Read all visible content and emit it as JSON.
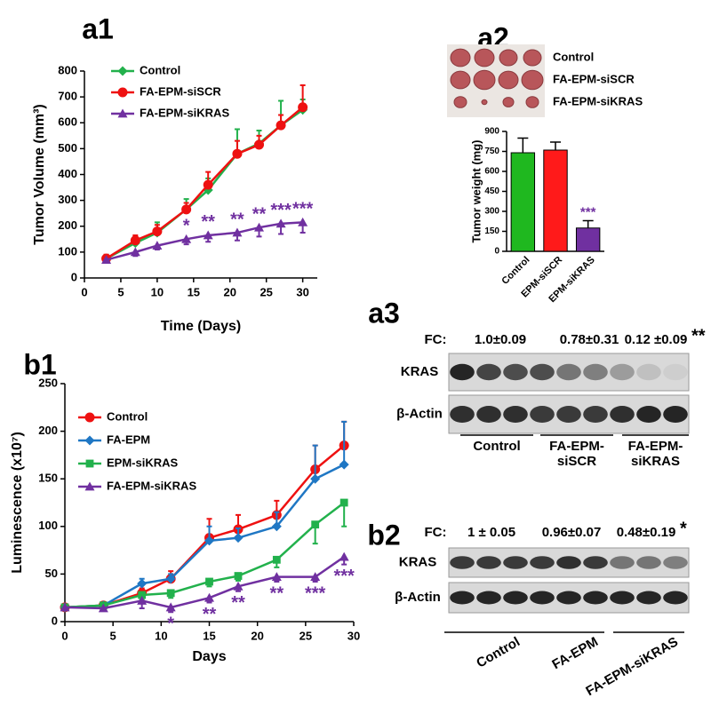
{
  "panel_labels": [
    "a1",
    "a2",
    "a3",
    "b1",
    "b2"
  ],
  "chart_data": [
    {
      "type": "line",
      "xlabel": "Time (Days)",
      "ylabel": "Tumor Volume (mm³)",
      "x": [
        3,
        7,
        10,
        14,
        17,
        21,
        24,
        27,
        30
      ],
      "xlim": [
        0,
        32
      ],
      "xticks": [
        0,
        5,
        10,
        15,
        20,
        25,
        30
      ],
      "ylim": [
        0,
        800
      ],
      "yticks": [
        0,
        100,
        200,
        300,
        400,
        500,
        600,
        700,
        800
      ],
      "legend_position": "upper left",
      "series": [
        {
          "name": "Control",
          "color": "#22b14c",
          "marker": "diamond",
          "error_direction": "up",
          "values": [
            75,
            135,
            175,
            265,
            340,
            480,
            520,
            590,
            650
          ],
          "errors": [
            10,
            15,
            40,
            40,
            45,
            95,
            50,
            95,
            40
          ]
        },
        {
          "name": "FA-EPM-siSCR",
          "color": "#ee1111",
          "marker": "circle",
          "error_direction": "up",
          "values": [
            75,
            145,
            180,
            265,
            360,
            480,
            515,
            590,
            660
          ],
          "errors": [
            15,
            20,
            25,
            25,
            50,
            50,
            35,
            40,
            85
          ]
        },
        {
          "name": "FA-EPM-siKRAS",
          "color": "#7030a0",
          "marker": "triangle",
          "error_direction": "down",
          "values": [
            70,
            100,
            125,
            150,
            165,
            175,
            195,
            210,
            215
          ],
          "errors": [
            10,
            15,
            15,
            20,
            25,
            30,
            35,
            40,
            40
          ]
        }
      ],
      "annotation_color": "#7030a0",
      "annotation_placement": "above",
      "annotations": [
        {
          "x": 14,
          "text": "*"
        },
        {
          "x": 17,
          "text": "**"
        },
        {
          "x": 21,
          "text": "**"
        },
        {
          "x": 24,
          "text": "**"
        },
        {
          "x": 27,
          "text": "***"
        },
        {
          "x": 30,
          "text": "***"
        }
      ]
    },
    {
      "type": "bar",
      "ylabel": "Tumor weight (mg)",
      "categories": [
        "Control",
        "EPM-siSCR",
        "EPM-siKRAS"
      ],
      "values": [
        740,
        760,
        175
      ],
      "errors": [
        110,
        60,
        55
      ],
      "colors": [
        "#1fb81f",
        "#ff1a1a",
        "#7030a0"
      ],
      "ylim": [
        0,
        900
      ],
      "yticks": [
        0,
        150,
        300,
        450,
        600,
        750,
        900
      ],
      "annotation_color": "#7030a0",
      "annotations": [
        {
          "category": "EPM-siKRAS",
          "text": "***"
        }
      ]
    },
    {
      "type": "line",
      "xlabel": "Days",
      "ylabel": "Luminescence (x10⁷)",
      "x": [
        0,
        4,
        8,
        11,
        15,
        18,
        22,
        26,
        29
      ],
      "xlim": [
        0,
        30
      ],
      "xticks": [
        0,
        5,
        10,
        15,
        20,
        25,
        30
      ],
      "ylim": [
        0,
        250
      ],
      "yticks": [
        0,
        50,
        100,
        150,
        200,
        250
      ],
      "legend_position": "upper left",
      "series": [
        {
          "name": "Control",
          "color": "#ee1111",
          "marker": "circle",
          "error_direction": "up",
          "values": [
            15,
            17,
            30,
            45,
            88,
            97,
            112,
            160,
            185
          ],
          "errors": [
            2,
            2,
            5,
            8,
            20,
            15,
            15,
            25,
            25
          ]
        },
        {
          "name": "FA-EPM",
          "color": "#1f77c4",
          "marker": "diamond",
          "error_direction": "up",
          "values": [
            15,
            17,
            40,
            45,
            85,
            88,
            100,
            150,
            165
          ],
          "errors": [
            2,
            2,
            5,
            5,
            15,
            10,
            15,
            35,
            45
          ]
        },
        {
          "name": "EPM-siKRAS",
          "color": "#22b14c",
          "marker": "square",
          "error_direction": "down",
          "values": [
            15,
            17,
            28,
            30,
            42,
            48,
            65,
            102,
            125
          ],
          "errors": [
            2,
            2,
            5,
            5,
            5,
            5,
            8,
            20,
            25
          ]
        },
        {
          "name": "FA-EPM-siKRAS",
          "color": "#7030a0",
          "marker": "triangle",
          "error_direction": "down",
          "values": [
            15,
            14,
            22,
            15,
            25,
            37,
            47,
            47,
            68
          ],
          "errors": [
            2,
            2,
            8,
            5,
            5,
            5,
            5,
            5,
            8
          ]
        }
      ],
      "annotation_color": "#7030a0",
      "annotation_placement": "below",
      "annotations": [
        {
          "x": 11,
          "text": "*"
        },
        {
          "x": 15,
          "text": "**"
        },
        {
          "x": 18,
          "text": "**"
        },
        {
          "x": 22,
          "text": "**"
        },
        {
          "x": 26,
          "text": "***"
        },
        {
          "x": 29,
          "text": "***"
        }
      ]
    }
  ],
  "photo": {
    "row_labels": [
      "Control",
      "FA-EPM-siSCR",
      "FA-EPM-siKRAS"
    ]
  },
  "blots": [
    {
      "fc_label": "FC:",
      "fc_values": [
        "1.0±0.09",
        "0.78±0.31",
        "0.12 ±0.09"
      ],
      "significance": "**",
      "rows": [
        "KRAS",
        "β-Actin"
      ],
      "groups": [
        [
          "Control"
        ],
        [
          "FA-EPM-",
          "siSCR"
        ],
        [
          "FA-EPM-",
          "siKRAS"
        ]
      ]
    },
    {
      "fc_label": "FC:",
      "fc_values": [
        "1 ± 0.05",
        "0.96±0.07",
        "0.48±0.19"
      ],
      "significance": "*",
      "rows": [
        "KRAS",
        "β-Actin"
      ],
      "groups": [
        [
          "Control"
        ],
        [
          "FA-EPM"
        ],
        [
          "FA-EPM-siKRAS"
        ]
      ]
    }
  ]
}
